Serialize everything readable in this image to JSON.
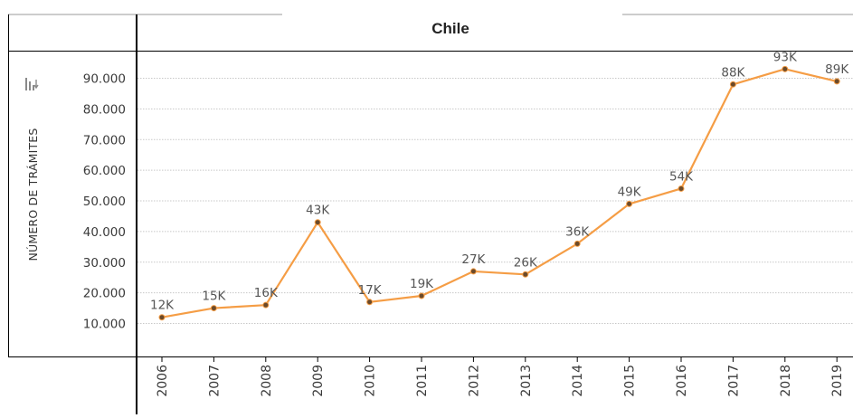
{
  "chart_data": {
    "type": "line",
    "title": "Chile",
    "ylabel": "NÚMERO DE TRÁMITES",
    "xlabel": "",
    "x": [
      "2006",
      "2007",
      "2008",
      "2009",
      "2010",
      "2011",
      "2012",
      "2013",
      "2014",
      "2015",
      "2016",
      "2017",
      "2018",
      "2019"
    ],
    "series": [
      {
        "values": [
          12000,
          15000,
          16000,
          43000,
          17000,
          19000,
          27000,
          26000,
          36000,
          49000,
          54000,
          88000,
          93000,
          89000
        ],
        "labels": [
          "12K",
          "15K",
          "16K",
          "43K",
          "17K",
          "19K",
          "27K",
          "26K",
          "36K",
          "49K",
          "54K",
          "88K",
          "93K",
          "89K"
        ],
        "color": "#F59D45",
        "marker_color": "#6B4A2A"
      }
    ],
    "yticks": [
      10000,
      20000,
      30000,
      40000,
      50000,
      60000,
      70000,
      80000,
      90000
    ],
    "ytick_labels": [
      "10.000",
      "20.000",
      "30.000",
      "40.000",
      "50.000",
      "60.000",
      "70.000",
      "80.000",
      "90.000"
    ],
    "ylim": [
      0,
      98000
    ],
    "grid": true,
    "legend": "none"
  },
  "colors": {
    "frame": "#000000",
    "grid": "#c8c8c8",
    "light_rule": "#9a9a9a",
    "line": "#F59D45"
  },
  "icons": {
    "sort": "sort-icon"
  }
}
